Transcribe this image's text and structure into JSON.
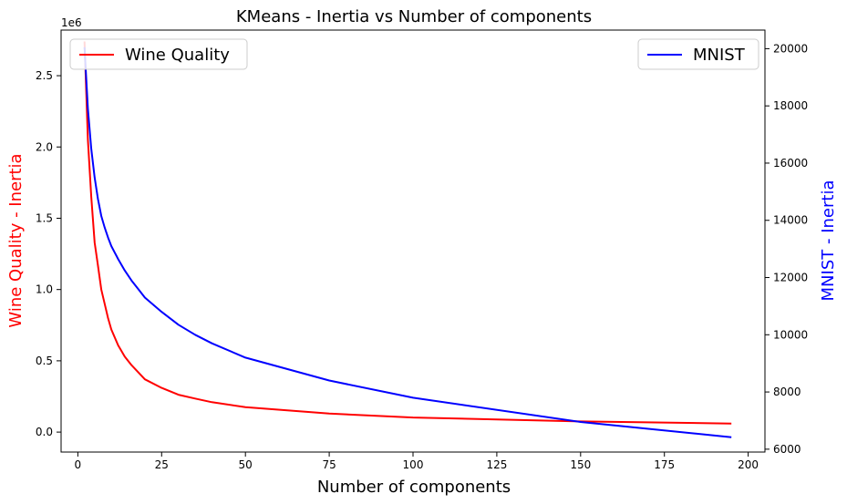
{
  "chart_data": {
    "type": "line",
    "title": "KMeans - Inertia vs Number of components",
    "xlabel": "Number of components",
    "xlim": [
      -5,
      205
    ],
    "xticks": [
      0,
      25,
      50,
      75,
      100,
      125,
      150,
      175,
      200
    ],
    "y_left": {
      "label": "Wine Quality - Inertia",
      "label_color": "#ff0000",
      "offset_text": "1e6",
      "scale": 1000000,
      "ylim": [
        -0.14,
        2.82
      ],
      "ticks": [
        0.0,
        0.5,
        1.0,
        1.5,
        2.0,
        2.5
      ],
      "tick_labels": [
        "0.0",
        "0.5",
        "1.0",
        "1.5",
        "2.0",
        "2.5"
      ]
    },
    "y_right": {
      "label": "MNIST - Inertia",
      "label_color": "#0000ff",
      "ylim": [
        5900,
        20650
      ],
      "ticks": [
        6000,
        8000,
        10000,
        12000,
        14000,
        16000,
        18000,
        20000
      ],
      "tick_labels": [
        "6000",
        "8000",
        "10000",
        "12000",
        "14000",
        "16000",
        "18000",
        "20000"
      ]
    },
    "series": [
      {
        "name": "Wine Quality",
        "color": "#ff0000",
        "axis": "left",
        "legend_position": "upper left",
        "x": [
          2,
          3,
          4,
          5,
          6,
          7,
          8,
          9,
          10,
          12,
          14,
          16,
          18,
          20,
          25,
          30,
          35,
          40,
          50,
          75,
          100,
          150,
          195
        ],
        "y": [
          2740000,
          2050000,
          1650000,
          1330000,
          1170000,
          1000000,
          900000,
          800000,
          720000,
          610000,
          530000,
          470000,
          420000,
          370000,
          310000,
          262000,
          235000,
          210000,
          175000,
          130000,
          102000,
          75000,
          60000
        ]
      },
      {
        "name": "MNIST",
        "color": "#0000ff",
        "axis": "right",
        "legend_position": "upper right",
        "x": [
          2,
          3,
          4,
          5,
          6,
          7,
          8,
          9,
          10,
          12,
          14,
          16,
          18,
          20,
          25,
          30,
          35,
          40,
          50,
          75,
          100,
          150,
          195
        ],
        "y": [
          20050,
          17900,
          16500,
          15500,
          14750,
          14150,
          13750,
          13400,
          13100,
          12650,
          12250,
          11900,
          11600,
          11300,
          10800,
          10350,
          10000,
          9700,
          9200,
          8400,
          7800,
          6950,
          6420
        ]
      }
    ]
  }
}
